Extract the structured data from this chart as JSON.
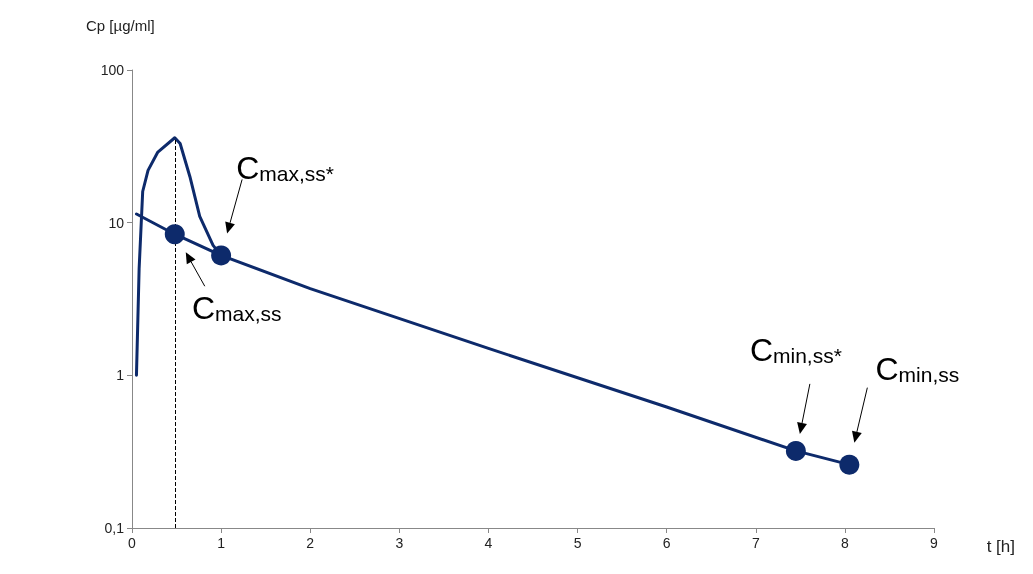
{
  "chart_data": {
    "type": "line",
    "xlabel": "t [h]",
    "ylabel": "Cp [µg/ml]",
    "xlim": [
      0,
      9
    ],
    "xticks": [
      0,
      1,
      2,
      3,
      4,
      5,
      6,
      7,
      8,
      9
    ],
    "ylim": [
      0.1,
      100
    ],
    "yticks": [
      {
        "value": 0.1,
        "label": "0,1"
      },
      1,
      10,
      100
    ],
    "log": "y",
    "grid": false,
    "marker": "none",
    "series": [
      {
        "color": "#0d2a6b",
        "x": [
          0.05,
          0.08,
          0.12,
          0.18,
          0.29,
          0.48,
          0.54,
          0.65,
          0.76,
          0.91,
          1.0
        ],
        "values": [
          1,
          5,
          16,
          22,
          29,
          36,
          33,
          20,
          11,
          7.1,
          6.1
        ]
      },
      {
        "color": "#0d2a6b",
        "x": [
          0.05,
          0.48,
          1.0,
          2,
          4,
          6,
          7.45,
          8.05
        ],
        "values": [
          11.4,
          8.4,
          6.1,
          3.7,
          1.5,
          0.62,
          0.32,
          0.26
        ]
      },
      {
        "type": "scatter",
        "marker": "circle",
        "color": "#0d2a6b",
        "x": [
          0.48,
          1.0,
          7.45,
          8.05
        ],
        "values": [
          8.4,
          6.1,
          0.32,
          0.26
        ]
      }
    ],
    "ref_lines": [
      {
        "axis": "x",
        "value": 0.48,
        "line_style": "dashed",
        "color": "#000000"
      }
    ],
    "annotations": [
      {
        "text": "C$_{max,ss*}$",
        "x": 1.0,
        "y": 6.1
      },
      {
        "text": "C$_{max,ss}$",
        "x": 0.48,
        "y": 8.4
      },
      {
        "text": "C$_{min,ss*}$",
        "x": 7.45,
        "y": 0.32
      },
      {
        "text": "C$_{min,ss}$",
        "x": 8.05,
        "y": 0.26
      }
    ]
  }
}
